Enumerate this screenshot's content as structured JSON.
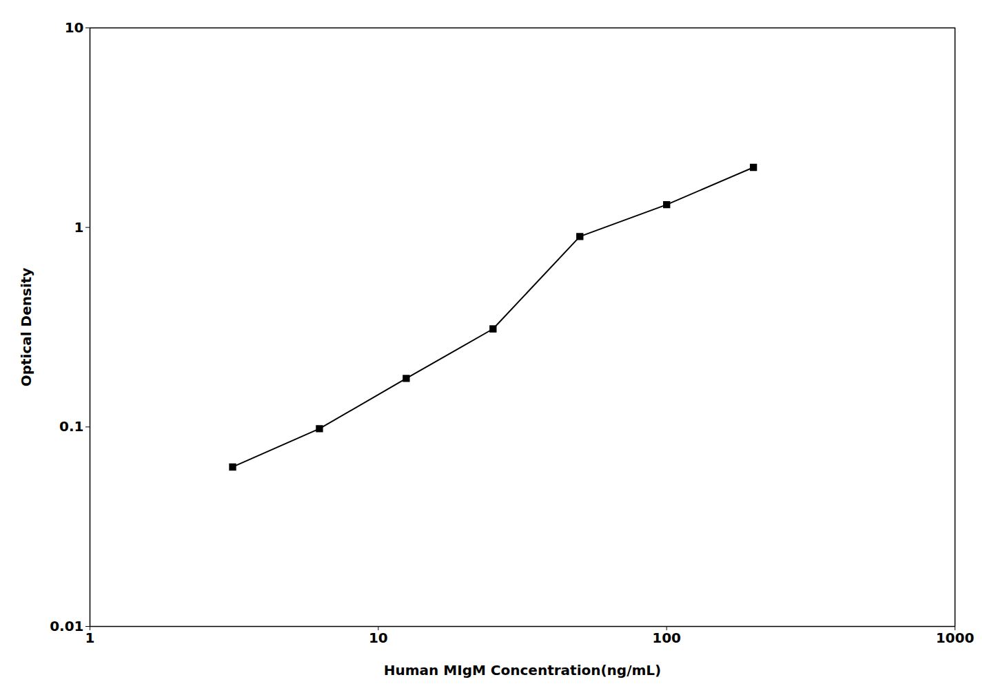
{
  "chart_data": {
    "type": "line",
    "x": [
      3.125,
      6.25,
      12.5,
      25,
      50,
      100,
      200
    ],
    "values": [
      0.063,
      0.098,
      0.175,
      0.31,
      0.9,
      1.3,
      2.0
    ],
    "xlabel": "Human MIgM Concentration(ng/mL)",
    "ylabel": "Optical Density",
    "xlim": [
      1,
      1000
    ],
    "ylim": [
      0.01,
      10
    ],
    "xticks": [
      1,
      10,
      100,
      1000
    ],
    "yticks": [
      0.01,
      0.1,
      1,
      10
    ],
    "log": true,
    "grid": false,
    "color": "#000000",
    "marker": "square"
  }
}
